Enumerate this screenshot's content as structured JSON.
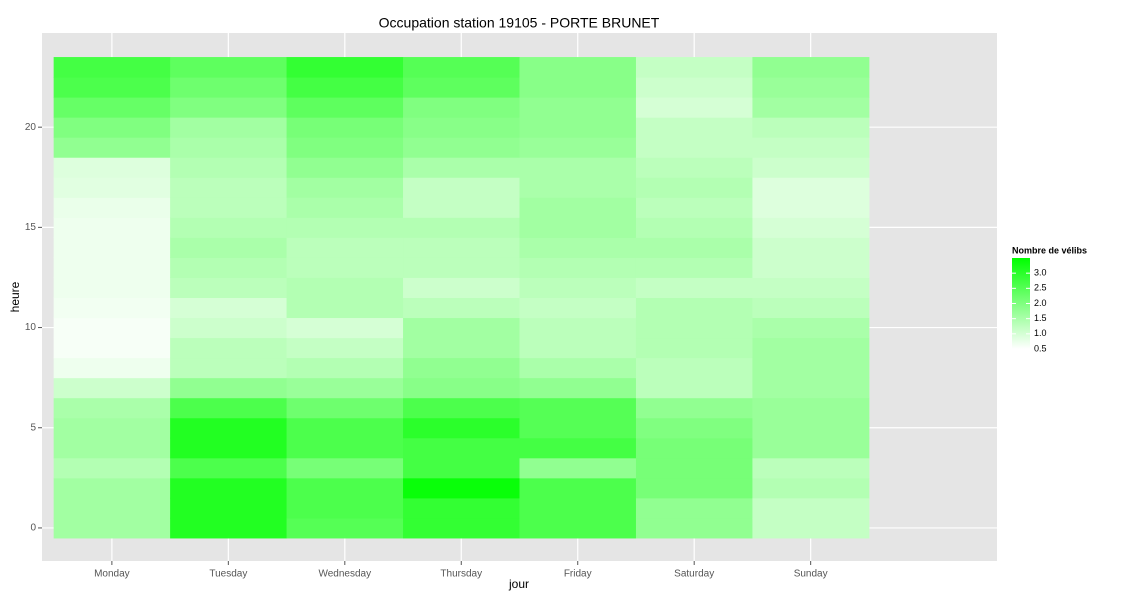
{
  "chart_data": {
    "type": "heatmap",
    "title": "Occupation station 19105 - PORTE BRUNET",
    "x_label": "jour",
    "y_label": "heure",
    "legend_title": "Nombre de vélibs",
    "categories": [
      "Monday",
      "Tuesday",
      "Wednesday",
      "Thursday",
      "Friday",
      "Saturday",
      "Sunday"
    ],
    "y": [
      0,
      1,
      2,
      3,
      4,
      5,
      6,
      7,
      8,
      9,
      10,
      11,
      12,
      13,
      14,
      15,
      16,
      17,
      18,
      19,
      20,
      21,
      22,
      23
    ],
    "values": [
      [
        1.6,
        1.6,
        1.6,
        1.4,
        1.6,
        1.6,
        1.5,
        1.1,
        0.7,
        0.6,
        0.6,
        0.65,
        0.7,
        0.7,
        0.7,
        0.7,
        0.75,
        0.85,
        0.9,
        1.8,
        2.0,
        2.3,
        2.6,
        2.7
      ],
      [
        3.1,
        3.1,
        3.1,
        2.6,
        3.1,
        3.1,
        2.6,
        1.8,
        1.3,
        1.3,
        1.1,
        1.0,
        1.3,
        1.4,
        1.5,
        1.4,
        1.3,
        1.3,
        1.4,
        1.5,
        1.6,
        2.0,
        2.2,
        2.4
      ],
      [
        2.5,
        2.6,
        2.6,
        2.1,
        2.6,
        2.6,
        2.2,
        1.7,
        1.4,
        1.2,
        1.0,
        1.4,
        1.4,
        1.3,
        1.3,
        1.4,
        1.5,
        1.6,
        1.8,
        2.0,
        2.1,
        2.4,
        2.7,
        2.9
      ],
      [
        2.9,
        2.9,
        3.4,
        2.7,
        2.7,
        3.0,
        2.6,
        1.9,
        1.8,
        1.6,
        1.6,
        1.3,
        1.1,
        1.3,
        1.3,
        1.4,
        1.2,
        1.2,
        1.5,
        1.8,
        1.9,
        2.0,
        2.4,
        2.5
      ],
      [
        2.6,
        2.6,
        2.6,
        1.8,
        2.7,
        2.5,
        2.5,
        1.8,
        1.5,
        1.3,
        1.3,
        1.2,
        1.3,
        1.4,
        1.5,
        1.6,
        1.6,
        1.5,
        1.5,
        1.7,
        1.8,
        1.8,
        1.9,
        1.9
      ],
      [
        1.8,
        1.8,
        2.1,
        2.1,
        2.1,
        2.0,
        1.8,
        1.3,
        1.3,
        1.4,
        1.4,
        1.4,
        1.2,
        1.4,
        1.5,
        1.4,
        1.3,
        1.4,
        1.3,
        1.2,
        1.2,
        1.0,
        1.1,
        1.2
      ],
      [
        1.2,
        1.2,
        1.4,
        1.3,
        1.7,
        1.7,
        1.7,
        1.6,
        1.6,
        1.6,
        1.5,
        1.3,
        1.2,
        1.1,
        1.1,
        1.0,
        0.9,
        0.9,
        1.1,
        1.2,
        1.3,
        1.6,
        1.7,
        1.8
      ]
    ],
    "ylim": [
      -1.65,
      24.7
    ],
    "yticks": [
      0,
      5,
      10,
      15,
      20
    ],
    "clim": [
      0.5,
      3.5
    ],
    "cticks": [
      0.5,
      {
        "value": 1,
        "label": "1.0"
      },
      1.5,
      {
        "value": 2,
        "label": "2.0"
      },
      2.5,
      {
        "value": 3,
        "label": "3.0"
      }
    ],
    "low_color": "#ffffff",
    "high_color": "#00ff00",
    "grid": true
  }
}
